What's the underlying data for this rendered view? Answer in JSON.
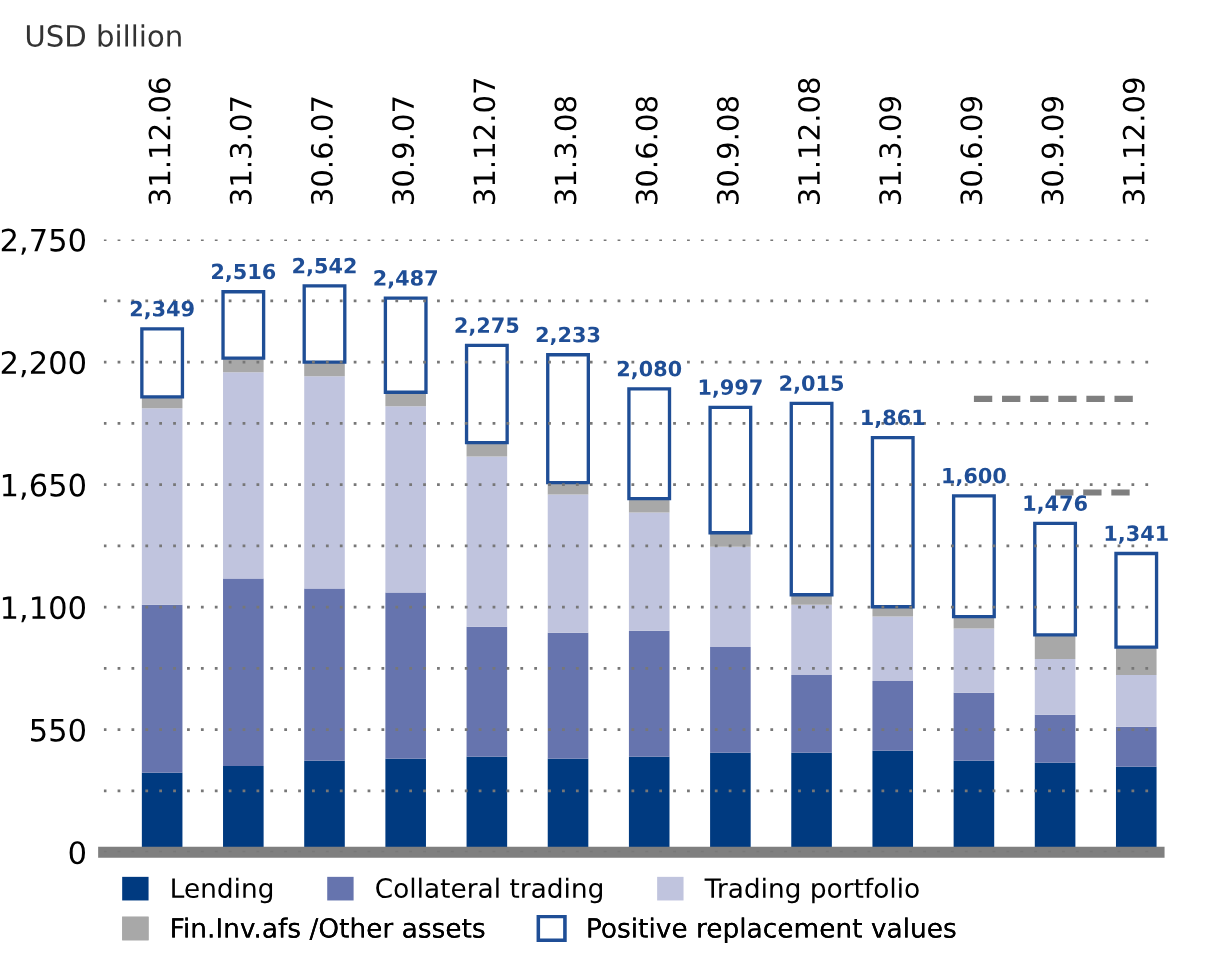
{
  "chart_data": {
    "type": "bar",
    "stacked": true,
    "ylabel": "USD billion",
    "categories": [
      "31.12.06",
      "31.3.07",
      "30.6.07",
      "30.9.07",
      "31.12.07",
      "31.3.08",
      "30.6.08",
      "30.9.08",
      "31.12.08",
      "31.3.09",
      "30.6.09",
      "30.9.09",
      "31.12.09"
    ],
    "series": [
      {
        "name": "Lending",
        "color": "#003a80",
        "values": [
          357,
          387,
          411,
          420,
          429,
          420,
          429,
          447,
          447,
          456,
          411,
          402,
          384
        ]
      },
      {
        "name": "Collateral trading",
        "color": "#6674ae",
        "values": [
          754,
          842,
          773,
          746,
          583,
          565,
          565,
          474,
          349,
          313,
          305,
          215,
          179
        ]
      },
      {
        "name": "Trading portfolio",
        "color": "#c0c4de",
        "values": [
          882,
          926,
          953,
          836,
          764,
          621,
          531,
          450,
          315,
          289,
          288,
          251,
          233
        ]
      },
      {
        "name": "Fin.Inv.afs /Other assets",
        "color": "#a8a8a8",
        "values": [
          51,
          63,
          63,
          63,
          63,
          53,
          62,
          63,
          45,
          44,
          54,
          108,
          125
        ]
      },
      {
        "name": "Positive replacement values",
        "color": "#ffffff",
        "values": [
          305,
          298,
          342,
          422,
          436,
          574,
          493,
          563,
          859,
          759,
          542,
          500,
          420
        ]
      },
      {
        "type": "line",
        "color": "#7f7f7f",
        "line_style": "dashed",
        "values": [
          null,
          null,
          null,
          null,
          null,
          null,
          null,
          null,
          null,
          null,
          2035,
          2035,
          2035
        ]
      },
      {
        "type": "line",
        "color": "#7f7f7f",
        "line_style": "dashed",
        "values": [
          null,
          null,
          null,
          null,
          null,
          null,
          null,
          null,
          null,
          null,
          null,
          1615,
          1615
        ]
      }
    ],
    "totals": [
      "2,349",
      "2,516",
      "2,542",
      "2,487",
      "2,275",
      "2,233",
      "2,080",
      "1,997",
      "2,015",
      "1,861",
      "1,600",
      "1,476",
      "1,341"
    ],
    "ylim": [
      0,
      2750
    ],
    "yticks": [
      0,
      {
        "value": 275,
        "label": null
      },
      550,
      {
        "value": 825,
        "label": null
      },
      "1,100",
      {
        "value": 1375,
        "label": null
      },
      "1,650",
      {
        "value": 1925,
        "label": null
      },
      "2,200",
      {
        "value": 2475,
        "label": null
      },
      "2,750"
    ],
    "grid": "y",
    "legend": "bottom"
  }
}
